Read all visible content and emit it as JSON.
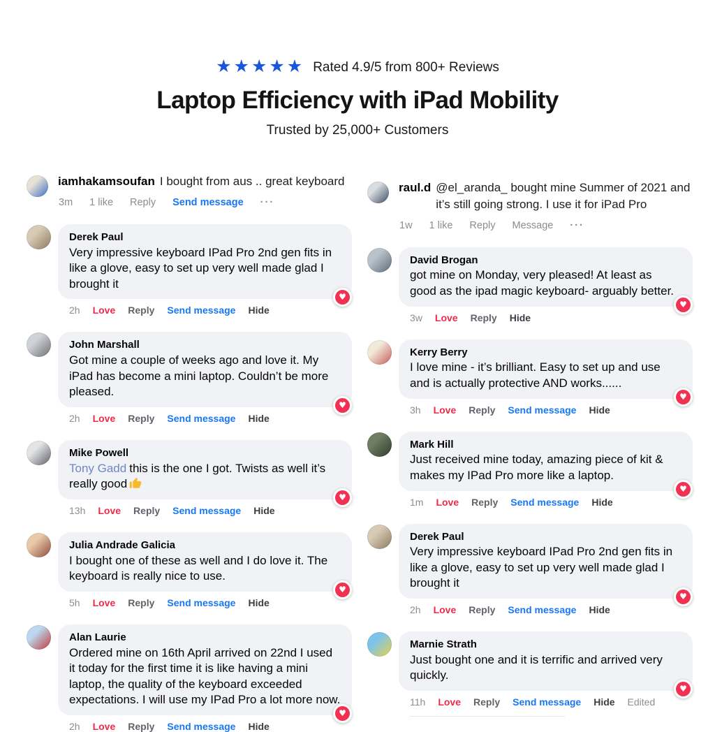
{
  "header": {
    "stars": "★★★★★",
    "star_color": "#1a56db",
    "rating_text": "Rated 4.9/5 from 800+ Reviews",
    "title": "Laptop Efficiency with iPad Mobility",
    "subtitle": "Trusted by 25,000+ Customers"
  },
  "colors": {
    "bubble_bg": "#f0f2f5",
    "love_red": "#f02849",
    "link_blue": "#1877f2",
    "mention_blue": "#6d87c8",
    "heart_red": "#f23051",
    "meta_gray": "#8a8d91"
  },
  "comments": {
    "left": [
      {
        "style": "plain",
        "username": "iamhakamsoufan",
        "text": "I bought from aus .. great keyboard",
        "avatar": [
          "#e8e2d6",
          "#3b6fc4"
        ],
        "heart": false,
        "meta": [
          {
            "label": "3m",
            "kind": "time"
          },
          {
            "label": "1 like",
            "kind": "likes"
          },
          {
            "label": "Reply",
            "kind": "muted"
          },
          {
            "label": "Send message",
            "kind": "send"
          },
          {
            "label": "···",
            "kind": "more"
          }
        ]
      },
      {
        "style": "bubble",
        "name": "Derek Paul",
        "text": "Very impressive keyboard IPad Pro 2nd gen fits in like a glove, easy to set up very well made glad I brought it",
        "avatar": [
          "#d8cbb6",
          "#8a7a5e"
        ],
        "heart": true,
        "meta": [
          {
            "label": "2h",
            "kind": "time"
          },
          {
            "label": "Love",
            "kind": "love"
          },
          {
            "label": "Reply",
            "kind": "reply"
          },
          {
            "label": "Send message",
            "kind": "send"
          },
          {
            "label": "Hide",
            "kind": "hide"
          }
        ]
      },
      {
        "style": "bubble",
        "name": "John Marshall",
        "text": "Got mine a couple of weeks ago and love it. My iPad has become a mini laptop. Couldn’t be more pleased.",
        "avatar": [
          "#cfd2d6",
          "#6e6f74"
        ],
        "heart": true,
        "meta": [
          {
            "label": "2h",
            "kind": "time"
          },
          {
            "label": "Love",
            "kind": "love"
          },
          {
            "label": "Reply",
            "kind": "reply"
          },
          {
            "label": "Send message",
            "kind": "send"
          },
          {
            "label": "Hide",
            "kind": "hide"
          }
        ]
      },
      {
        "style": "bubble",
        "name": "Mike Powell",
        "mention": "Tony Gadd",
        "text": "this is the one I got. Twists as well it’s really good",
        "emoji": "thumbs-up",
        "avatar": [
          "#e3e4e6",
          "#5f6266"
        ],
        "heart": true,
        "meta": [
          {
            "label": "13h",
            "kind": "time"
          },
          {
            "label": "Love",
            "kind": "love"
          },
          {
            "label": "Reply",
            "kind": "reply"
          },
          {
            "label": "Send message",
            "kind": "send"
          },
          {
            "label": "Hide",
            "kind": "hide"
          }
        ]
      },
      {
        "style": "bubble",
        "name": "Julia Andrade Galicia",
        "text": "I bought one of these as well and I do love it. The keyboard is really nice to use.",
        "avatar": [
          "#e9c9a8",
          "#8c4a3a"
        ],
        "heart": true,
        "meta": [
          {
            "label": "5h",
            "kind": "time"
          },
          {
            "label": "Love",
            "kind": "love"
          },
          {
            "label": "Reply",
            "kind": "reply"
          },
          {
            "label": "Send message",
            "kind": "send"
          },
          {
            "label": "Hide",
            "kind": "hide"
          }
        ]
      },
      {
        "style": "bubble",
        "name": "Alan Laurie",
        "text": "Ordered mine on 16th April arrived on 22nd I used it today for the first time it is like having a mini laptop, the quality of the keyboard exceeded expectations. I will use my IPad Pro a lot more now.",
        "avatar": [
          "#bcd7ee",
          "#c23b3b"
        ],
        "heart": true,
        "meta": [
          {
            "label": "2h",
            "kind": "time"
          },
          {
            "label": "Love",
            "kind": "love"
          },
          {
            "label": "Reply",
            "kind": "reply"
          },
          {
            "label": "Send message",
            "kind": "send"
          },
          {
            "label": "Hide",
            "kind": "hide"
          }
        ]
      }
    ],
    "right": [
      {
        "style": "plain",
        "username": "raul.d",
        "text": "@el_aranda_ bought mine Summer of 2021 and it’s still going strong. I use it for iPad Pro",
        "avatar": [
          "#d9dce0",
          "#3e4d63"
        ],
        "heart": false,
        "meta": [
          {
            "label": "1w",
            "kind": "time"
          },
          {
            "label": "1 like",
            "kind": "likes"
          },
          {
            "label": "Reply",
            "kind": "muted"
          },
          {
            "label": "Message",
            "kind": "muted"
          },
          {
            "label": "···",
            "kind": "more"
          }
        ]
      },
      {
        "style": "bubble",
        "name": "David Brogan",
        "text": "got mine on Monday, very pleased! At least as good as the ipad magic keyboard- arguably better.",
        "avatar": [
          "#b9c3cc",
          "#5d6b77"
        ],
        "heart": true,
        "meta": [
          {
            "label": "3w",
            "kind": "time"
          },
          {
            "label": "Love",
            "kind": "love"
          },
          {
            "label": "Reply",
            "kind": "reply"
          },
          {
            "label": "Hide",
            "kind": "hide"
          }
        ]
      },
      {
        "style": "bubble",
        "name": "Kerry Berry",
        "text": "I love mine - it’s brilliant. Easy to set up and use and is actually protective AND works......",
        "avatar": [
          "#f2ead8",
          "#c75b5b"
        ],
        "heart": true,
        "meta": [
          {
            "label": "3h",
            "kind": "time"
          },
          {
            "label": "Love",
            "kind": "love"
          },
          {
            "label": "Reply",
            "kind": "reply"
          },
          {
            "label": "Send message",
            "kind": "send"
          },
          {
            "label": "Hide",
            "kind": "hide"
          }
        ]
      },
      {
        "style": "bubble",
        "name": "Mark Hill",
        "text": "Just received mine today, amazing piece of kit & makes my IPad Pro more like a laptop.",
        "avatar": [
          "#6f7d62",
          "#2f3a2c"
        ],
        "heart": true,
        "meta": [
          {
            "label": "1m",
            "kind": "time"
          },
          {
            "label": "Love",
            "kind": "love"
          },
          {
            "label": "Reply",
            "kind": "reply"
          },
          {
            "label": "Send message",
            "kind": "send"
          },
          {
            "label": "Hide",
            "kind": "hide"
          }
        ]
      },
      {
        "style": "bubble",
        "name": "Derek Paul",
        "text": "Very impressive keyboard IPad Pro 2nd gen fits in like a glove, easy to set up very well made glad I brought it",
        "avatar": [
          "#d8cbb6",
          "#8a7a5e"
        ],
        "heart": true,
        "meta": [
          {
            "label": "2h",
            "kind": "time"
          },
          {
            "label": "Love",
            "kind": "love"
          },
          {
            "label": "Reply",
            "kind": "reply"
          },
          {
            "label": "Send message",
            "kind": "send"
          },
          {
            "label": "Hide",
            "kind": "hide"
          }
        ]
      },
      {
        "style": "bubble",
        "name": "Marnie Strath",
        "text": "Just bought one and it is terrific and arrived very quickly.",
        "avatar": [
          "#7ec3ea",
          "#e8d24a"
        ],
        "heart": true,
        "divider": true,
        "meta": [
          {
            "label": "11h",
            "kind": "time"
          },
          {
            "label": "Love",
            "kind": "love"
          },
          {
            "label": "Reply",
            "kind": "reply"
          },
          {
            "label": "Send message",
            "kind": "send"
          },
          {
            "label": "Hide",
            "kind": "hide"
          },
          {
            "label": "Edited",
            "kind": "edited"
          }
        ]
      }
    ]
  }
}
